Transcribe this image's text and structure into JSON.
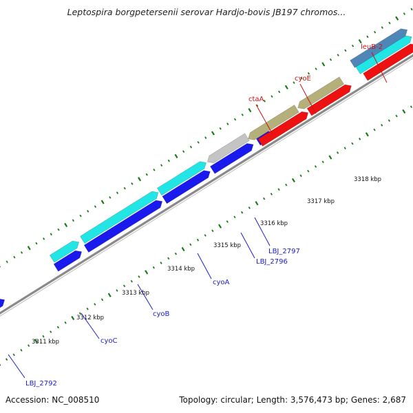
{
  "title": "Leptospira borgpetersenii serovar Hardjo-bovis JB197 chromos...",
  "footer": {
    "accession": "Accession: NC_008510",
    "summary": "Topology: circular; Length: 3,576,473 bp; Genes: 2,687"
  },
  "colors": {
    "backbone": "#8a8a8a",
    "tick": "#1a7a1a",
    "blue": "#1a1aee",
    "cyan": "#22e6e6",
    "gray": "#c4c4c4",
    "olive": "#b5b07a",
    "red": "#ee1111",
    "steel": "#4f86b8",
    "label_blue": "#1a1acc",
    "label_red": "#cc1111"
  },
  "scale_labels": [
    "3311 kbp",
    "3312 kbp",
    "3313 kbp",
    "3314 kbp",
    "3315 kbp",
    "3316 kbp",
    "3317 kbp",
    "3318 kbp"
  ],
  "gene_labels": [
    {
      "text": "LBJ_2792",
      "color": "label_blue"
    },
    {
      "text": "cyoC",
      "color": "label_blue"
    },
    {
      "text": "cyoB",
      "color": "label_blue"
    },
    {
      "text": "cyoA",
      "color": "label_blue"
    },
    {
      "text": "LBJ_2796",
      "color": "label_blue"
    },
    {
      "text": "LBJ_2797",
      "color": "label_blue"
    },
    {
      "text": "ctaA",
      "color": "label_red"
    },
    {
      "text": "cyoE",
      "color": "label_red"
    },
    {
      "text": "leuB-2",
      "color": "label_red"
    }
  ]
}
